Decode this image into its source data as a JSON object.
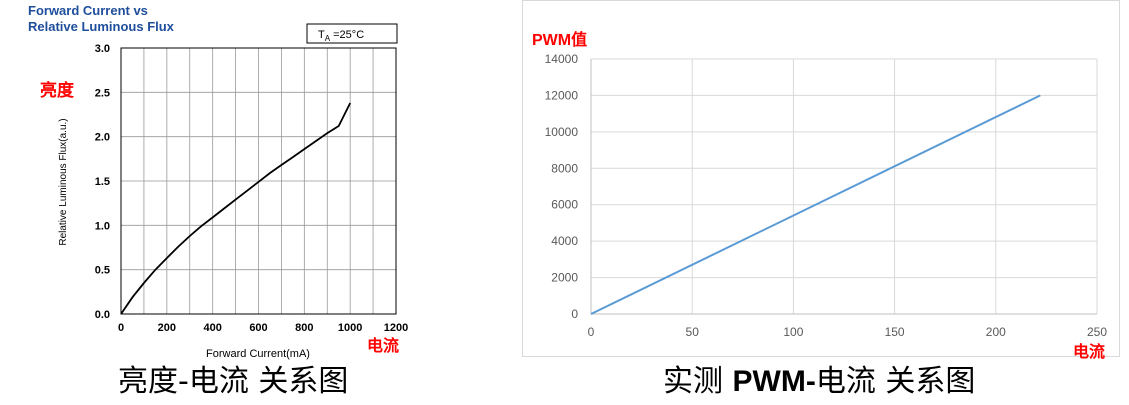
{
  "colors": {
    "left_title": "#1f4e9c",
    "red_label": "#ff0000",
    "left_curve": "#000000",
    "right_line": "#5b9bd5",
    "right_grid": "#d9d9d9",
    "left_grid": "#999999"
  },
  "chart_data": [
    {
      "type": "line",
      "title": "Forward Current vs\nRelative Luminous Flux",
      "title_lines": [
        "Forward Current vs",
        "Relative Luminous Flux"
      ],
      "annotation": {
        "text_main": "T",
        "text_sub": "A",
        "text_rest": " =25°C"
      },
      "side_label": "亮度",
      "corner_label": "电流",
      "xlabel": "Forward Current(mA)",
      "ylabel": "Relative Luminous Flux(a.u.)",
      "xlim": [
        0,
        1200
      ],
      "ylim": [
        0,
        3.0
      ],
      "x_ticks": [
        "0",
        "200",
        "400",
        "600",
        "800",
        "1000",
        "1200"
      ],
      "y_ticks": [
        "0.0",
        "0.5",
        "1.0",
        "1.5",
        "2.0",
        "2.5",
        "3.0"
      ],
      "grid": true,
      "series": [
        {
          "x": [
            0,
            50,
            100,
            150,
            200,
            250,
            300,
            350,
            400,
            450,
            500,
            550,
            600,
            650,
            700,
            750,
            800,
            850,
            900,
            950,
            1000
          ],
          "y": [
            0.0,
            0.19,
            0.35,
            0.5,
            0.63,
            0.76,
            0.88,
            0.99,
            1.09,
            1.19,
            1.29,
            1.39,
            1.49,
            1.59,
            1.68,
            1.77,
            1.86,
            1.95,
            2.04,
            2.12,
            2.38
          ]
        }
      ]
    },
    {
      "type": "line",
      "ylabel_top": "PWM值",
      "corner_label": "电流",
      "xlim": [
        0,
        250
      ],
      "ylim": [
        0,
        14000
      ],
      "x_ticks": [
        "0",
        "50",
        "100",
        "150",
        "200",
        "250"
      ],
      "y_ticks": [
        "0",
        "2000",
        "4000",
        "6000",
        "8000",
        "10000",
        "12000",
        "14000"
      ],
      "grid": true,
      "series": [
        {
          "x": [
            0,
            222
          ],
          "y": [
            0,
            12000
          ]
        }
      ]
    }
  ],
  "captions": {
    "left": "亮度-电流 关系图",
    "right_pre": "实测 ",
    "right_bold": "PWM-",
    "right_post": "电流 关系图"
  }
}
